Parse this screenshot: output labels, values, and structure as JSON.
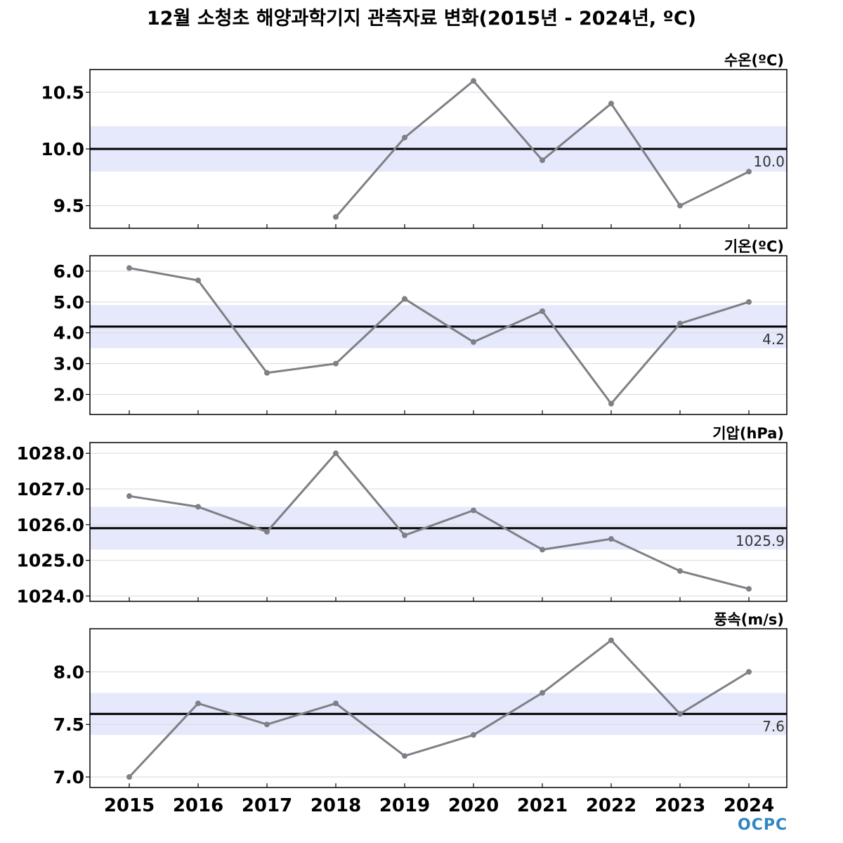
{
  "title": "12월 소청초 해양과학기지 관측자료 변화(2015년 - 2024년, ºC)",
  "logo_text": "OCPC",
  "colors": {
    "series_line": "#7f7f86",
    "mean_line": "#000000",
    "band_fill": "#e6e9fb",
    "grid": "#d9d9d9",
    "logo": "#2e86c1"
  },
  "chart_data": [
    {
      "type": "line",
      "label": "수온(ºC)",
      "x": [
        2015,
        2016,
        2017,
        2018,
        2019,
        2020,
        2021,
        2022,
        2023,
        2024
      ],
      "values": [
        null,
        null,
        null,
        9.4,
        10.1,
        10.6,
        9.9,
        10.4,
        9.5,
        9.8
      ],
      "mean": 10.0,
      "mean_label": "10.0",
      "band": [
        9.8,
        10.2
      ],
      "ylim": [
        9.3,
        10.7
      ],
      "yticks": [
        9.5,
        10.0,
        10.5
      ],
      "ytick_labels": [
        "9.5",
        "10.0",
        "10.5"
      ],
      "grid": true
    },
    {
      "type": "line",
      "label": "기온(ºC)",
      "x": [
        2015,
        2016,
        2017,
        2018,
        2019,
        2020,
        2021,
        2022,
        2023,
        2024
      ],
      "values": [
        6.1,
        5.7,
        2.7,
        3.0,
        5.1,
        3.7,
        4.7,
        1.7,
        4.3,
        5.0
      ],
      "mean": 4.2,
      "mean_label": "4.2",
      "band": [
        3.5,
        4.9
      ],
      "ylim": [
        1.35,
        6.5
      ],
      "yticks": [
        2.0,
        3.0,
        4.0,
        5.0,
        6.0
      ],
      "ytick_labels": [
        "2.0",
        "3.0",
        "4.0",
        "5.0",
        "6.0"
      ],
      "grid": true
    },
    {
      "type": "line",
      "label": "기압(hPa)",
      "x": [
        2015,
        2016,
        2017,
        2018,
        2019,
        2020,
        2021,
        2022,
        2023,
        2024
      ],
      "values": [
        1026.8,
        1026.5,
        1025.8,
        1028.0,
        1025.7,
        1026.4,
        1025.3,
        1025.6,
        1024.7,
        1024.2
      ],
      "mean": 1025.9,
      "mean_label": "1025.9",
      "band": [
        1025.3,
        1026.5
      ],
      "ylim": [
        1023.85,
        1028.3
      ],
      "yticks": [
        1024.0,
        1025.0,
        1026.0,
        1027.0,
        1028.0
      ],
      "ytick_labels": [
        "1024.0",
        "1025.0",
        "1026.0",
        "1027.0",
        "1028.0"
      ],
      "grid": true
    },
    {
      "type": "line",
      "label": "풍속(m/s)",
      "x": [
        2015,
        2016,
        2017,
        2018,
        2019,
        2020,
        2021,
        2022,
        2023,
        2024
      ],
      "values": [
        7.0,
        7.7,
        7.5,
        7.7,
        7.2,
        7.4,
        7.8,
        8.3,
        7.6,
        8.0
      ],
      "mean": 7.6,
      "mean_label": "7.6",
      "band": [
        7.4,
        7.8
      ],
      "ylim": [
        6.9,
        8.41
      ],
      "yticks": [
        7.0,
        7.5,
        8.0
      ],
      "ytick_labels": [
        "7.0",
        "7.5",
        "8.0"
      ],
      "grid": true
    }
  ],
  "xtick_labels": [
    "2015",
    "2016",
    "2017",
    "2018",
    "2019",
    "2020",
    "2021",
    "2022",
    "2023",
    "2024"
  ]
}
